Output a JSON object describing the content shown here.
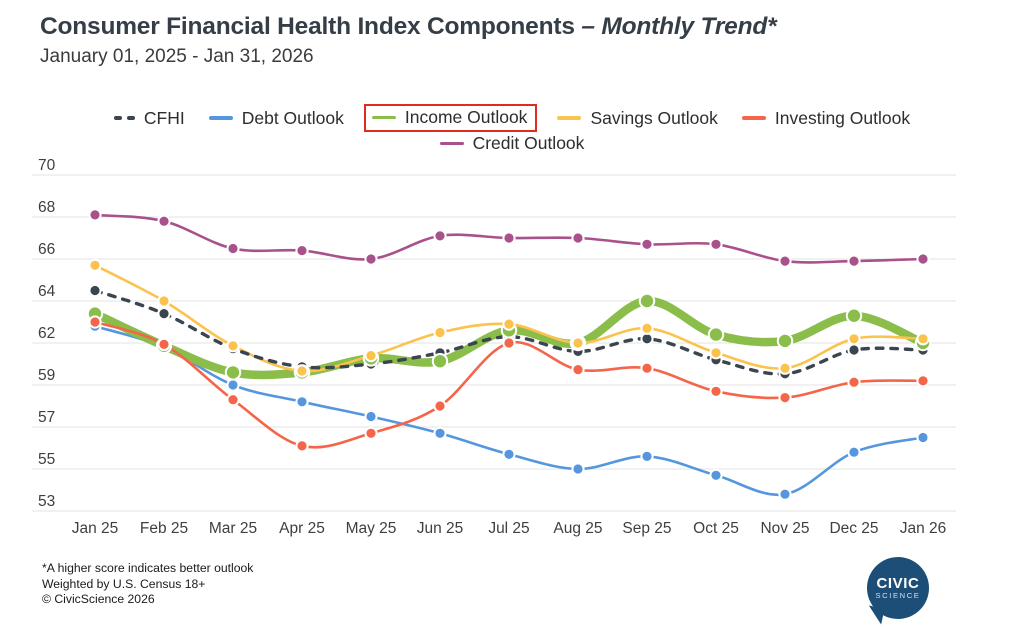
{
  "header": {
    "title_main": "Consumer Financial Health Index Components ",
    "title_em": "– Monthly Trend*",
    "subtitle": "January 01, 2025 - Jan 31, 2026"
  },
  "footer": {
    "line1": "*A higher score indicates better outlook",
    "line2": "Weighted by U.S. Census 18+",
    "line3": "© CivicScience 2026"
  },
  "logo": {
    "line1": "CIVIC",
    "line2": "SCIENCE"
  },
  "colors": {
    "grid": "#E3E3E3",
    "axis_text": "#3F3F3F",
    "highlight_box": "#E02B1F"
  },
  "chart_data": {
    "type": "line",
    "title": "Consumer Financial Health Index Components – Monthly Trend*",
    "subtitle": "January 01, 2025 - Jan 31, 2026",
    "x_labels": [
      "Jan 25",
      "Feb 25",
      "Mar 25",
      "Apr 25",
      "May 25",
      "Jun 25",
      "Jul 25",
      "Aug 25",
      "Sep 25",
      "Oct 25",
      "Nov 25",
      "Dec 25",
      "Jan 26"
    ],
    "y_ticks": [
      70,
      68,
      66,
      64,
      62,
      59,
      57,
      55,
      53
    ],
    "ylim": [
      53,
      70
    ],
    "grid": true,
    "legend_position": "top",
    "series": [
      {
        "name": "CFHI",
        "color": "#3A454F",
        "style": "dashed",
        "width": 3.4,
        "dot_r": 5.6,
        "highlighted": false,
        "values": [
          64.5,
          63.4,
          61.6,
          60.3,
          60.5,
          61.3,
          62.3,
          61.4,
          62.2,
          60.8,
          59.8,
          61.5,
          61.5
        ]
      },
      {
        "name": "Debt Outlook",
        "color": "#5596DF",
        "style": "solid",
        "width": 2.6,
        "dot_r": 5.6,
        "highlighted": false,
        "values": [
          62.8,
          61.7,
          59.0,
          58.2,
          57.5,
          56.7,
          55.7,
          55.0,
          55.6,
          54.7,
          53.8,
          55.8,
          56.5
        ]
      },
      {
        "name": "Income Outlook",
        "color": "#8BBD4B",
        "style": "solid",
        "width": 8.5,
        "dot_r": 7.2,
        "highlighted": true,
        "values": [
          63.4,
          61.8,
          59.9,
          59.9,
          60.9,
          60.7,
          62.6,
          62.0,
          64.0,
          62.4,
          62.1,
          63.3,
          62.0
        ]
      },
      {
        "name": "Savings Outlook",
        "color": "#FCC24E",
        "style": "solid",
        "width": 2.6,
        "dot_r": 5.6,
        "highlighted": false,
        "values": [
          65.7,
          64.0,
          61.8,
          60.0,
          61.1,
          62.5,
          62.9,
          62.0,
          62.7,
          61.3,
          60.2,
          62.2,
          62.2
        ]
      },
      {
        "name": "Investing Outlook",
        "color": "#F4654A",
        "style": "solid",
        "width": 2.6,
        "dot_r": 5.6,
        "highlighted": false,
        "values": [
          63.0,
          61.9,
          58.3,
          56.1,
          56.7,
          58.0,
          62.0,
          60.1,
          60.2,
          58.7,
          58.4,
          59.2,
          59.3
        ]
      },
      {
        "name": "Credit Outlook",
        "color": "#A8518A",
        "style": "solid",
        "width": 2.6,
        "dot_r": 5.6,
        "highlighted": false,
        "values": [
          68.1,
          67.8,
          66.5,
          66.4,
          66.0,
          67.1,
          67.0,
          67.0,
          66.7,
          66.7,
          65.9,
          65.9,
          66.0
        ]
      }
    ]
  }
}
